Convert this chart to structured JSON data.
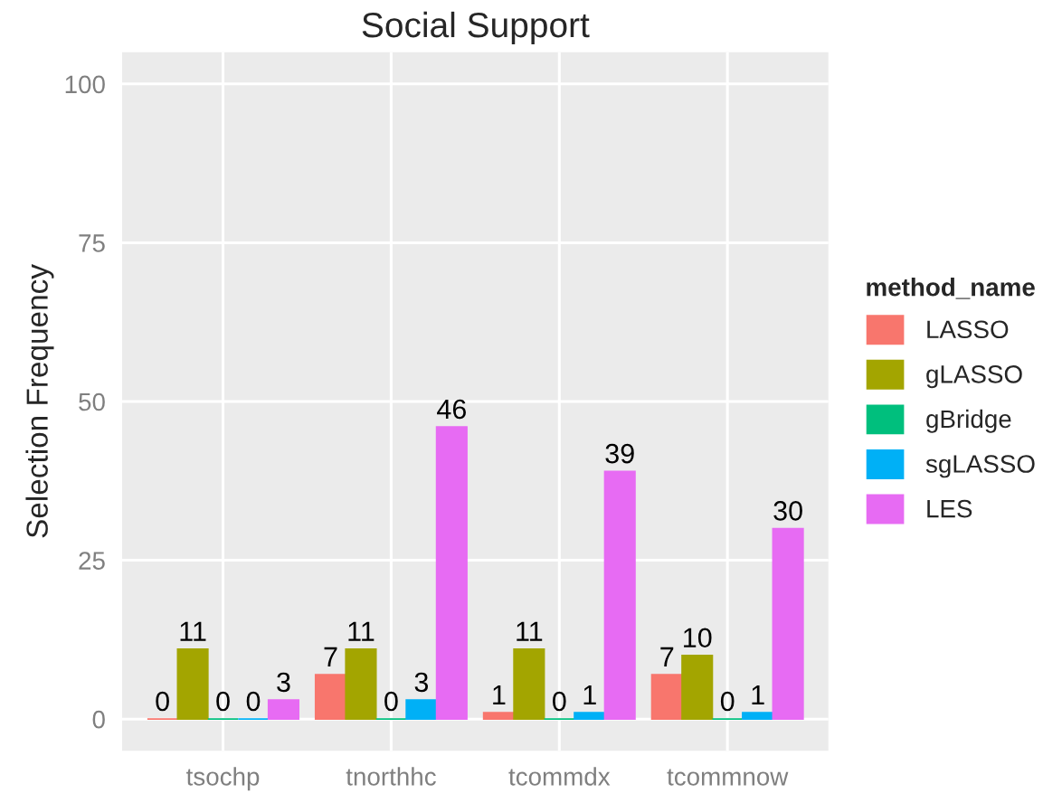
{
  "chart_data": {
    "type": "bar",
    "title": "Social Support",
    "ylabel": "Selection Frequency",
    "legend_title": "method_name",
    "categories": [
      "tsochp",
      "tnorthhc",
      "tcommdx",
      "tcommnow"
    ],
    "series": [
      {
        "name": "LASSO",
        "color": "#f8766d",
        "values": [
          0,
          7,
          1,
          7
        ]
      },
      {
        "name": "gLASSO",
        "color": "#a3a500",
        "values": [
          11,
          11,
          11,
          10
        ]
      },
      {
        "name": "gBridge",
        "color": "#00bf7d",
        "values": [
          0,
          0,
          0,
          0
        ]
      },
      {
        "name": "sgLASSO",
        "color": "#00b0f6",
        "values": [
          0,
          3,
          1,
          1
        ]
      },
      {
        "name": "LES",
        "color": "#e76bf3",
        "values": [
          3,
          46,
          39,
          30
        ]
      }
    ],
    "ylim": [
      -5,
      105
    ],
    "yticks": [
      0,
      25,
      50,
      75,
      100
    ],
    "grid": true,
    "legend": "right",
    "data_labels": true
  }
}
